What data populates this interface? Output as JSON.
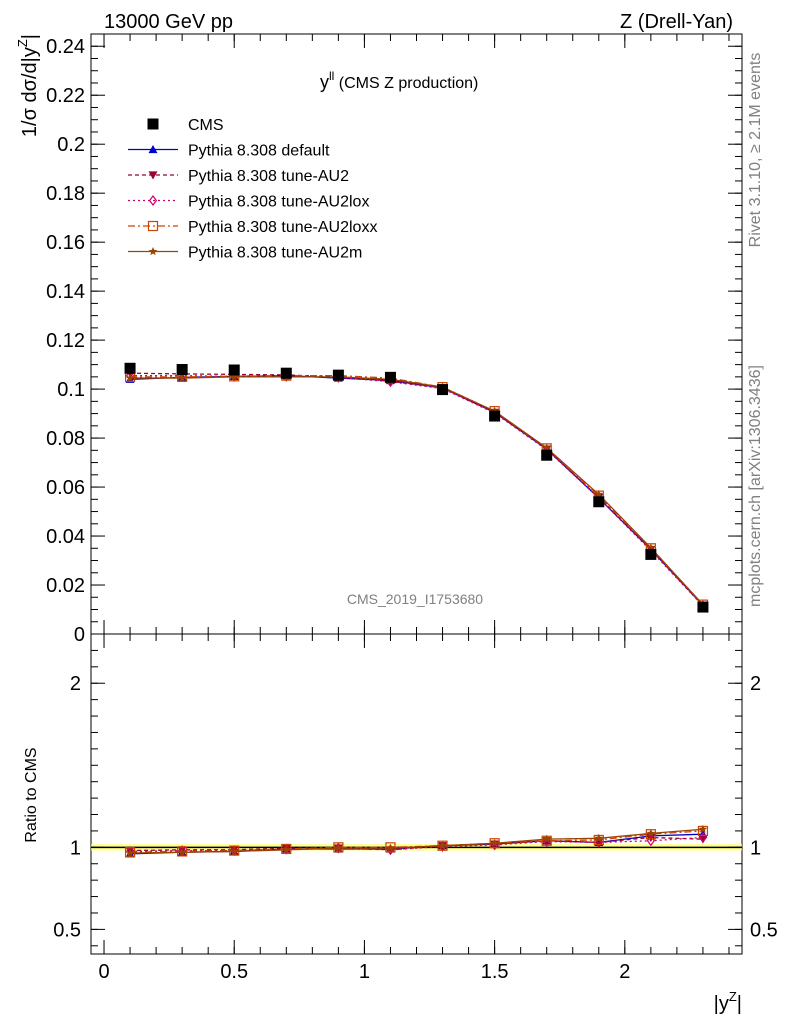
{
  "header": {
    "left": "13000 GeV pp",
    "right": "Z (Drell-Yan)"
  },
  "side_labels": {
    "rivet": "Rivet 3.1.10, ≥ 2.1M events",
    "mcplots": "mcplots.cern.ch [arXiv:1306.3436]"
  },
  "plot_title_main": "y",
  "plot_title_sup": "ll",
  "plot_title_rest": " (CMS Z production)",
  "watermark": "CMS_2019_I1753680",
  "ylabel_main": "1/σ dσ/d|y",
  "ylabel_sup": "Z",
  "ylabel_end": "|",
  "ratio_ylabel": "Ratio to CMS",
  "xlabel_main": "|y",
  "xlabel_sup": "Z",
  "xlabel_end": "|",
  "chart_data": {
    "type": "line",
    "x": [
      0.1,
      0.3,
      0.5,
      0.7,
      0.9,
      1.1,
      1.3,
      1.5,
      1.7,
      1.9,
      2.1,
      2.3
    ],
    "main": {
      "ylim": [
        0,
        0.245
      ],
      "yticks": [
        0,
        0.02,
        0.04,
        0.06,
        0.08,
        0.1,
        0.12,
        0.14,
        0.16,
        0.18,
        0.2,
        0.22,
        0.24
      ],
      "ytick_labels": [
        "0",
        "0.02",
        "0.04",
        "0.06",
        "0.08",
        "0.1",
        "0.12",
        "0.14",
        "0.16",
        "0.18",
        "0.2",
        "0.22",
        "0.24"
      ]
    },
    "ratio": {
      "ylim": [
        0.35,
        2.3
      ],
      "yticks": [
        0.5,
        1,
        2
      ],
      "ytick_labels": [
        "0.5",
        "1",
        "2"
      ],
      "band": [
        0.98,
        1.02
      ]
    },
    "xlim": [
      -0.05,
      2.45
    ],
    "xticks": [
      0,
      0.5,
      1,
      1.5,
      2
    ],
    "xtick_labels": [
      "0",
      "0.5",
      "1",
      "1.5",
      "2"
    ],
    "series": [
      {
        "name": "CMS",
        "color": "#000000",
        "marker": "square",
        "dash": "none",
        "values": [
          0.1085,
          0.108,
          0.1078,
          0.1065,
          0.1057,
          0.1048,
          0.0998,
          0.089,
          0.073,
          0.054,
          0.0325,
          0.011
        ],
        "ratio": [
          1,
          1,
          1,
          1,
          1,
          1,
          1,
          1,
          1,
          1,
          1,
          1
        ]
      },
      {
        "name": "Pythia 8.308 default",
        "color": "#0000cc",
        "marker": "triangle-up",
        "dash": "none",
        "values": [
          0.104,
          0.1048,
          0.1052,
          0.1055,
          0.1045,
          0.1035,
          0.1005,
          0.0905,
          0.0755,
          0.0555,
          0.0345,
          0.0118
        ],
        "ratio": [
          0.96,
          0.97,
          0.975,
          0.99,
          0.99,
          0.99,
          1.01,
          1.02,
          1.04,
          1.03,
          1.07,
          1.08
        ]
      },
      {
        "name": "Pythia 8.308 tune-AU2",
        "color": "#990033",
        "marker": "triangle-down",
        "dash": "4,3",
        "values": [
          0.1065,
          0.1062,
          0.106,
          0.1058,
          0.105,
          0.1032,
          0.1005,
          0.0905,
          0.0755,
          0.0558,
          0.0345,
          0.0115
        ],
        "ratio": [
          0.98,
          0.985,
          0.985,
          0.995,
          0.995,
          0.985,
          1.01,
          1.02,
          1.04,
          1.03,
          1.06,
          1.05
        ]
      },
      {
        "name": "Pythia 8.308 tune-AU2lox",
        "color": "#cc0066",
        "marker": "diamond-open",
        "dash": "2,3",
        "values": [
          0.1055,
          0.1055,
          0.1052,
          0.1052,
          0.1048,
          0.103,
          0.1002,
          0.0902,
          0.0752,
          0.0555,
          0.034,
          0.0115
        ],
        "ratio": [
          0.975,
          0.98,
          0.98,
          0.99,
          0.995,
          0.985,
          1.005,
          1.015,
          1.035,
          1.03,
          1.04,
          1.06
        ]
      },
      {
        "name": "Pythia 8.308 tune-AU2loxx",
        "color": "#cc4400",
        "marker": "square-open",
        "dash": "7,3,2,3",
        "values": [
          0.105,
          0.105,
          0.1052,
          0.1055,
          0.1055,
          0.1045,
          0.1008,
          0.091,
          0.0758,
          0.0565,
          0.035,
          0.012
        ],
        "ratio": [
          0.97,
          0.975,
          0.98,
          0.99,
          1.0,
          1.0,
          1.01,
          1.025,
          1.04,
          1.045,
          1.08,
          1.1
        ]
      },
      {
        "name": "Pythia 8.308 tune-AU2m",
        "color": "#994400",
        "marker": "star",
        "dash": "none",
        "values": [
          0.1045,
          0.1045,
          0.105,
          0.105,
          0.105,
          0.104,
          0.1008,
          0.091,
          0.076,
          0.057,
          0.0352,
          0.012
        ],
        "ratio": [
          0.965,
          0.97,
          0.975,
          0.985,
          0.995,
          0.995,
          1.01,
          1.025,
          1.05,
          1.055,
          1.085,
          1.11
        ]
      }
    ]
  }
}
